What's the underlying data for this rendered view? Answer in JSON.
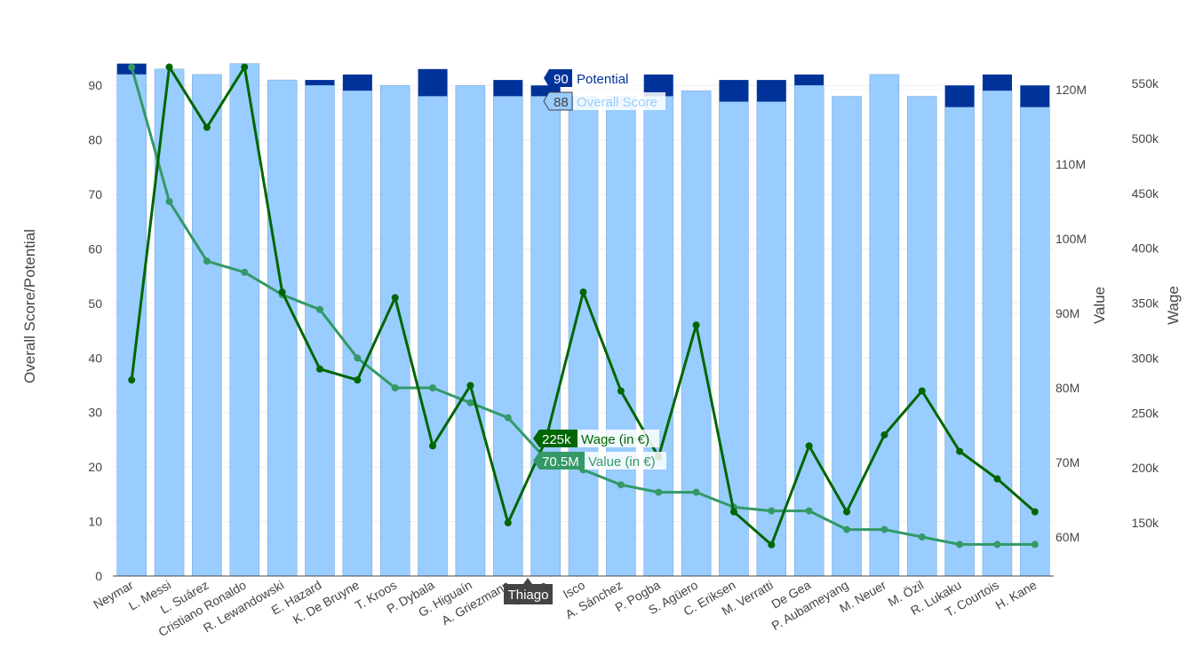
{
  "chart_data": {
    "type": "bar+line",
    "categories": [
      "Neymar",
      "L. Messi",
      "L. Suárez",
      "Cristiano Ronaldo",
      "R. Lewandowski",
      "E. Hazard",
      "K. De Bruyne",
      "T. Kroos",
      "P. Dybala",
      "G. Higuaín",
      "A. Griezmann",
      "Thiago",
      "Isco",
      "A. Sánchez",
      "P. Pogba",
      "S. Agüero",
      "C. Eriksen",
      "M. Verratti",
      "De Gea",
      "P. Aubameyang",
      "M. Neuer",
      "M. Özil",
      "R. Lukaku",
      "T. Courtois",
      "H. Kane"
    ],
    "series": [
      {
        "name": "Overall Score",
        "type": "bar",
        "axis": "left",
        "color": "#99ccff",
        "values": [
          92,
          93,
          92,
          94,
          91,
          90,
          89,
          90,
          88,
          90,
          88,
          88,
          88,
          88,
          88,
          89,
          87,
          87,
          90,
          88,
          92,
          88,
          86,
          89,
          86
        ]
      },
      {
        "name": "Potential",
        "type": "bar",
        "axis": "left",
        "color": "#003399",
        "values": [
          94,
          93,
          92,
          94,
          91,
          91,
          92,
          90,
          93,
          90,
          91,
          90,
          88,
          88,
          92,
          89,
          91,
          91,
          92,
          88,
          92,
          88,
          90,
          92,
          90
        ]
      },
      {
        "name": "Value (in €)",
        "type": "line",
        "axis": "y2",
        "color": "#339966",
        "values": [
          123,
          105,
          97,
          95.5,
          92.5,
          90.5,
          84,
          80,
          80,
          78,
          76,
          70.5,
          69,
          67,
          66,
          66,
          64,
          63.5,
          63.5,
          61,
          61,
          60,
          59,
          59,
          59
        ]
      },
      {
        "name": "Wage (in €)",
        "type": "line",
        "axis": "y3",
        "color": "#006600",
        "values": [
          280000,
          565000,
          510000,
          565000,
          360000,
          290000,
          280000,
          355000,
          220000,
          275000,
          150000,
          225000,
          360000,
          270000,
          210000,
          330000,
          160000,
          130000,
          220000,
          160000,
          230000,
          270000,
          215000,
          190000,
          160000
        ]
      }
    ],
    "ylabel": "Overall Score/Potential",
    "y2label": "Value",
    "y3label": "Wage",
    "yticks": [
      "0",
      "10",
      "20",
      "30",
      "40",
      "50",
      "60",
      "70",
      "80",
      "90"
    ],
    "y2ticks": [
      "60M",
      "70M",
      "80M",
      "90M",
      "100M",
      "110M",
      "120M"
    ],
    "y3ticks": [
      "150k",
      "200k",
      "250k",
      "300k",
      "350k",
      "400k",
      "450k",
      "500k",
      "550k"
    ],
    "ylim": [
      0,
      90.2
    ],
    "y2lim": [
      54.5,
      121.7
    ],
    "y3lim": [
      100000,
      555000
    ],
    "hover": {
      "category": "Thiago",
      "potential_value": "90",
      "potential_label": "Potential",
      "overall_value": "88",
      "overall_label": "Overall Score",
      "wage_value": "225k",
      "wage_label": "Wage (in €)",
      "value_value": "70.5M",
      "value_label": "Value (in €)"
    }
  }
}
